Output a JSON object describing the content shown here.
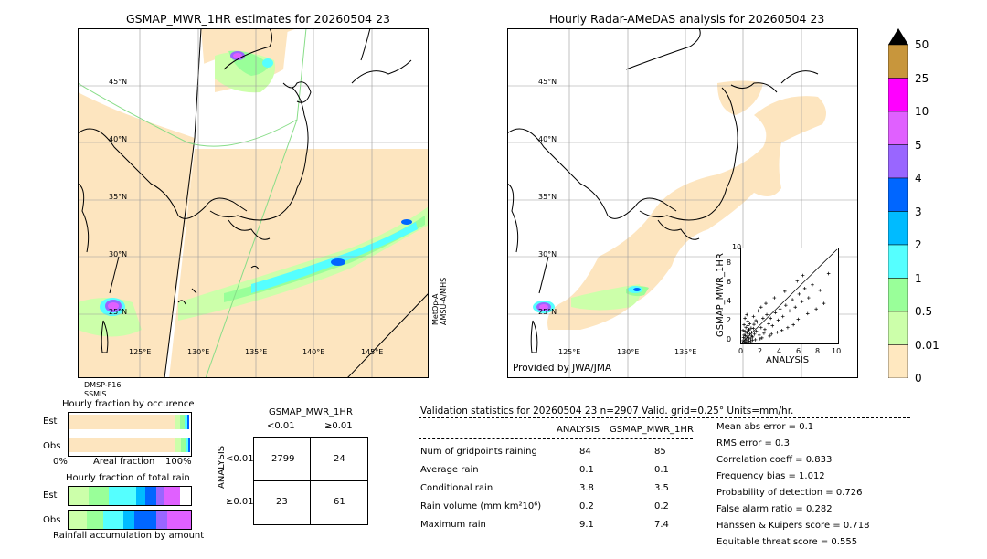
{
  "left_map": {
    "title": "GSMAP_MWR_1HR estimates for 20260504 23",
    "lat_labels": [
      "45°N",
      "40°N",
      "35°N",
      "30°N",
      "25°N"
    ],
    "lon_labels": [
      "125°E",
      "130°E",
      "135°E",
      "140°E",
      "145°E"
    ],
    "sensor_bottom": [
      "DMSP-F16",
      "SSMIS"
    ],
    "sensor_right": [
      "MetOp-A",
      "AMSU-A/MHS"
    ]
  },
  "right_map": {
    "title": "Hourly Radar-AMeDAS analysis for 20260504 23",
    "lat_labels": [
      "45°N",
      "40°N",
      "35°N",
      "30°N",
      "25°N"
    ],
    "lon_labels": [
      "125°E",
      "130°E",
      "135°E"
    ],
    "credit": "Provided by JWA/JMA"
  },
  "colorbar": {
    "labels": [
      "50",
      "25",
      "10",
      "5",
      "4",
      "3",
      "2",
      "1",
      "0.5",
      "0.01",
      "0"
    ],
    "colors": [
      "#c8963c",
      "#ff00ff",
      "#e060ff",
      "#9966ff",
      "#0066ff",
      "#00bbff",
      "#55ffff",
      "#99ff99",
      "#ccffaa",
      "#ffe8c0"
    ]
  },
  "fraction_panels": {
    "occurrence_title": "Hourly fraction by occurence",
    "amount_title": "Hourly fraction of total rain",
    "row_est": "Est",
    "row_obs": "Obs",
    "axis_left": "0%",
    "axis_mid": "Areal fraction",
    "axis_right": "100%",
    "amount_caption": "Rainfall accumulation by amount"
  },
  "contingency": {
    "title": "GSMAP_MWR_1HR",
    "col_labels": [
      "<0.01",
      "≥0.01"
    ],
    "row_axis": "ANALYSIS",
    "row_labels": [
      "<0.01",
      "≥0.01"
    ],
    "cells": [
      [
        "2799",
        "24"
      ],
      [
        "23",
        "61"
      ]
    ]
  },
  "validation": {
    "header": "Validation statistics for 20260504 23  n=2907 Valid. grid=0.25° Units=mm/hr.",
    "col_analysis": "ANALYSIS",
    "col_gsmap": "GSMAP_MWR_1HR",
    "rows": [
      {
        "label": "Num of gridpoints raining",
        "analysis": "84",
        "gsmap": "85"
      },
      {
        "label": "Average rain",
        "analysis": "0.1",
        "gsmap": "0.1"
      },
      {
        "label": "Conditional rain",
        "analysis": "3.8",
        "gsmap": "3.5"
      },
      {
        "label": "Rain volume (mm km²10⁶)",
        "analysis": "0.2",
        "gsmap": "0.2"
      },
      {
        "label": "Maximum rain",
        "analysis": "9.1",
        "gsmap": "7.4"
      }
    ],
    "scores": [
      "Mean abs error =    0.1",
      "RMS error =    0.3",
      "Correlation coeff =  0.833",
      "Frequency bias =  1.012",
      "Probability of detection =  0.726",
      "False alarm ratio =  0.282",
      "Hanssen & Kuipers score =  0.718",
      "Equitable threat score =  0.555"
    ]
  },
  "chart_data": {
    "type": "scatter",
    "xlabel": "ANALYSIS",
    "ylabel": "GSMAP_MWR_1HR",
    "xlim": [
      0,
      10
    ],
    "ylim": [
      0,
      10
    ],
    "ticks": [
      "0",
      "2",
      "4",
      "6",
      "8",
      "10"
    ],
    "top_tick": "10",
    "points": [
      [
        0.1,
        0.2
      ],
      [
        0.2,
        0.1
      ],
      [
        0.3,
        0.4
      ],
      [
        0.4,
        0.2
      ],
      [
        0.5,
        0.6
      ],
      [
        0.6,
        0.3
      ],
      [
        0.7,
        0.5
      ],
      [
        0.8,
        0.9
      ],
      [
        0.9,
        0.4
      ],
      [
        1.0,
        0.7
      ],
      [
        0.2,
        0.8
      ],
      [
        0.3,
        1.2
      ],
      [
        0.4,
        1.6
      ],
      [
        0.5,
        1.0
      ],
      [
        0.6,
        1.8
      ],
      [
        0.7,
        1.4
      ],
      [
        0.8,
        2.0
      ],
      [
        1.0,
        1.1
      ],
      [
        1.1,
        0.6
      ],
      [
        1.2,
        1.5
      ],
      [
        1.3,
        0.9
      ],
      [
        1.5,
        1.2
      ],
      [
        1.6,
        2.2
      ],
      [
        1.8,
        0.8
      ],
      [
        2.0,
        1.6
      ],
      [
        2.2,
        2.6
      ],
      [
        2.4,
        1.4
      ],
      [
        2.6,
        3.0
      ],
      [
        2.8,
        2.0
      ],
      [
        3.0,
        2.6
      ],
      [
        3.2,
        1.8
      ],
      [
        3.5,
        3.2
      ],
      [
        3.8,
        2.4
      ],
      [
        4.0,
        3.6
      ],
      [
        4.3,
        2.8
      ],
      [
        4.6,
        4.0
      ],
      [
        5.0,
        3.4
      ],
      [
        5.3,
        4.6
      ],
      [
        5.6,
        3.8
      ],
      [
        6.0,
        5.2
      ],
      [
        6.3,
        4.4
      ],
      [
        6.6,
        5.8
      ],
      [
        7.0,
        4.8
      ],
      [
        7.4,
        6.2
      ],
      [
        8.2,
        5.6
      ],
      [
        9.1,
        7.4
      ],
      [
        0.3,
        2.6
      ],
      [
        0.5,
        3.0
      ],
      [
        1.2,
        2.8
      ],
      [
        2.0,
        3.8
      ],
      [
        0.9,
        0.1
      ],
      [
        1.4,
        0.3
      ],
      [
        2.1,
        0.5
      ],
      [
        3.1,
        0.9
      ],
      [
        4.2,
        1.3
      ],
      [
        5.4,
        1.9
      ],
      [
        0.1,
        1.3
      ],
      [
        0.2,
        1.9
      ],
      [
        0.6,
        2.3
      ],
      [
        1.7,
        3.4
      ],
      [
        2.5,
        4.2
      ],
      [
        3.4,
        4.8
      ],
      [
        4.5,
        5.5
      ],
      [
        5.8,
        6.6
      ],
      [
        6.4,
        7.2
      ],
      [
        0.4,
        0.05
      ],
      [
        0.7,
        0.15
      ],
      [
        1.1,
        0.25
      ],
      [
        1.9,
        0.4
      ],
      [
        2.9,
        0.7
      ],
      [
        3.7,
        1.1
      ],
      [
        4.8,
        1.6
      ],
      [
        0.15,
        0.55
      ],
      [
        0.35,
        0.75
      ],
      [
        0.55,
        1.15
      ],
      [
        0.75,
        1.35
      ],
      [
        0.95,
        1.55
      ],
      [
        1.25,
        1.95
      ],
      [
        1.45,
        2.35
      ],
      [
        7.8,
        3.6
      ],
      [
        8.6,
        4.2
      ],
      [
        6.9,
        3.1
      ],
      [
        5.9,
        2.5
      ],
      [
        2.3,
        1.0
      ]
    ]
  }
}
